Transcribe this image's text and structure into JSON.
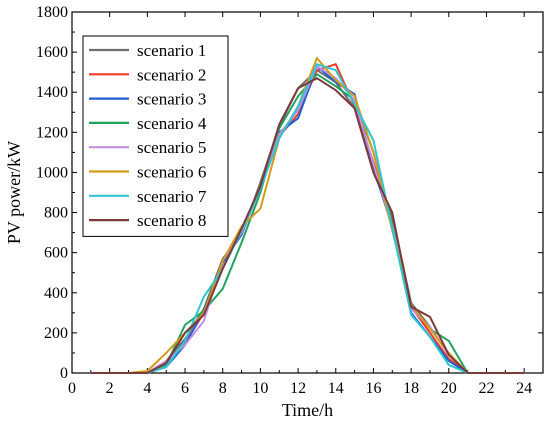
{
  "chart_data": {
    "type": "line",
    "xlabel": "Time/h",
    "ylabel": "PV power/kW",
    "xlim": [
      0,
      25
    ],
    "ylim": [
      0,
      1800
    ],
    "xticks": [
      0,
      2,
      4,
      6,
      8,
      10,
      12,
      14,
      16,
      18,
      20,
      22,
      24
    ],
    "yticks": [
      0,
      200,
      400,
      600,
      800,
      1000,
      1200,
      1400,
      1600,
      1800
    ],
    "grid": false,
    "legend_position": "top-left",
    "x": [
      1,
      2,
      3,
      4,
      5,
      6,
      7,
      8,
      9,
      10,
      11,
      12,
      13,
      14,
      15,
      16,
      17,
      18,
      19,
      20,
      21,
      22,
      23,
      24
    ],
    "series": [
      {
        "name": "scenario 1",
        "color": "#6e6e6e",
        "values": [
          0,
          0,
          0,
          0,
          60,
          170,
          320,
          570,
          690,
          950,
          1230,
          1420,
          1510,
          1450,
          1320,
          1000,
          780,
          350,
          230,
          90,
          0,
          0,
          0,
          0
        ]
      },
      {
        "name": "scenario 2",
        "color": "#f23a2a",
        "values": [
          0,
          0,
          0,
          0,
          40,
          150,
          300,
          560,
          700,
          930,
          1180,
          1290,
          1510,
          1540,
          1330,
          1050,
          750,
          330,
          200,
          70,
          0,
          0,
          0,
          0
        ]
      },
      {
        "name": "scenario 3",
        "color": "#1f5fd6",
        "values": [
          0,
          0,
          0,
          0,
          30,
          140,
          310,
          550,
          690,
          930,
          1200,
          1270,
          1530,
          1450,
          1390,
          1020,
          730,
          300,
          180,
          60,
          0,
          0,
          0,
          0
        ]
      },
      {
        "name": "scenario 4",
        "color": "#1fa35f",
        "values": [
          0,
          0,
          0,
          0,
          40,
          240,
          310,
          420,
          650,
          900,
          1220,
          1380,
          1490,
          1430,
          1360,
          1100,
          740,
          340,
          220,
          160,
          0,
          0,
          0,
          0
        ]
      },
      {
        "name": "scenario 5",
        "color": "#c38ee6",
        "values": [
          0,
          0,
          0,
          0,
          60,
          140,
          260,
          560,
          700,
          920,
          1190,
          1310,
          1530,
          1470,
          1360,
          1040,
          730,
          320,
          230,
          90,
          0,
          0,
          0,
          0
        ]
      },
      {
        "name": "scenario 6",
        "color": "#d49a1a",
        "values": [
          0,
          0,
          0,
          10,
          100,
          200,
          300,
          560,
          730,
          820,
          1170,
          1330,
          1570,
          1460,
          1380,
          1100,
          710,
          340,
          220,
          100,
          0,
          0,
          0,
          0
        ]
      },
      {
        "name": "scenario 7",
        "color": "#2cc7d2",
        "values": [
          0,
          0,
          0,
          0,
          30,
          160,
          380,
          520,
          710,
          920,
          1170,
          1330,
          1540,
          1510,
          1340,
          1160,
          720,
          290,
          180,
          40,
          0,
          0,
          0,
          0
        ]
      },
      {
        "name": "scenario 8",
        "color": "#7b3b3b",
        "values": [
          0,
          0,
          0,
          0,
          50,
          200,
          290,
          520,
          720,
          930,
          1240,
          1420,
          1470,
          1410,
          1320,
          1000,
          800,
          330,
          280,
          90,
          0,
          0,
          0,
          0
        ]
      }
    ]
  }
}
